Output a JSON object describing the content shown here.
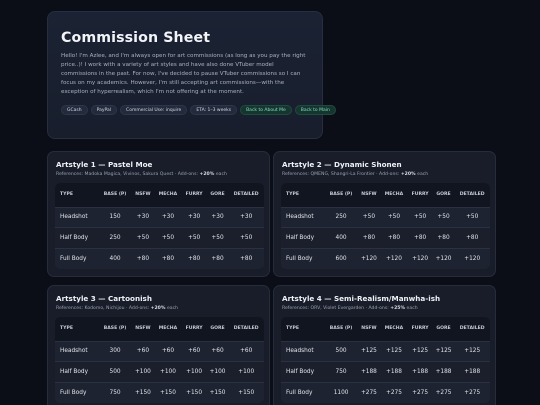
{
  "hero": {
    "title": "Commission Sheet",
    "intro": "Hello! I'm Azlee, and I'm always open for art commissions (as long as you pay the right price..)! I work with a variety of art styles and have also done VTuber model commissions in the past. For now, I've decided to pause VTuber commissions so I can focus on my academics. However, I'm still accepting art commissions—with the exception of hyperrealism, which I'm not offering at the moment.",
    "chips": [
      "GCash",
      "PayPal",
      "Commercial Use: inquire",
      "ETA: 1–3 weeks"
    ],
    "links": [
      "Back to About Me",
      "Back to Main"
    ]
  },
  "columns": [
    "TYPE",
    "BASE (P)",
    "NSFW",
    "MECHA",
    "FURRY",
    "GORE",
    "DETAILED"
  ],
  "styles": [
    {
      "title": "Artstyle 1 — Pastel Moe",
      "refs": "References: Madoka Magica, Vivinos, Sakura Quest · Add-ons: ",
      "addon": "+20%",
      "each": " each",
      "rows": [
        [
          "Headshot",
          "150",
          "+30",
          "+30",
          "+30",
          "+30",
          "+30"
        ],
        [
          "Half Body",
          "250",
          "+50",
          "+50",
          "+50",
          "+50",
          "+50"
        ],
        [
          "Full Body",
          "400",
          "+80",
          "+80",
          "+80",
          "+80",
          "+80"
        ]
      ]
    },
    {
      "title": "Artstyle 2 — Dynamic Shonen",
      "refs": "References: QMENG, Shangri-La Frontier · Add-ons: ",
      "addon": "+20%",
      "each": " each",
      "rows": [
        [
          "Headshot",
          "250",
          "+50",
          "+50",
          "+50",
          "+50",
          "+50"
        ],
        [
          "Half Body",
          "400",
          "+80",
          "+80",
          "+80",
          "+80",
          "+80"
        ],
        [
          "Full Body",
          "600",
          "+120",
          "+120",
          "+120",
          "+120",
          "+120"
        ]
      ]
    },
    {
      "title": "Artstyle 3 — Cartoonish",
      "refs": "References: Kodomo, Nichijou · Add-ons: ",
      "addon": "+20%",
      "each": " each",
      "rows": [
        [
          "Headshot",
          "300",
          "+60",
          "+60",
          "+60",
          "+60",
          "+60"
        ],
        [
          "Half Body",
          "500",
          "+100",
          "+100",
          "+100",
          "+100",
          "+100"
        ],
        [
          "Full Body",
          "750",
          "+150",
          "+150",
          "+150",
          "+150",
          "+150"
        ]
      ]
    },
    {
      "title": "Artstyle 4 — Semi-Realism/Manwha-ish",
      "refs": "References: ORV, Violet Evergarden · Add-ons: ",
      "addon": "+25%",
      "each": " each",
      "rows": [
        [
          "Headshot",
          "500",
          "+125",
          "+125",
          "+125",
          "+125",
          "+125"
        ],
        [
          "Half Body",
          "750",
          "+188",
          "+188",
          "+188",
          "+188",
          "+188"
        ],
        [
          "Full Body",
          "1100",
          "+275",
          "+275",
          "+275",
          "+275",
          "+275"
        ]
      ]
    }
  ]
}
